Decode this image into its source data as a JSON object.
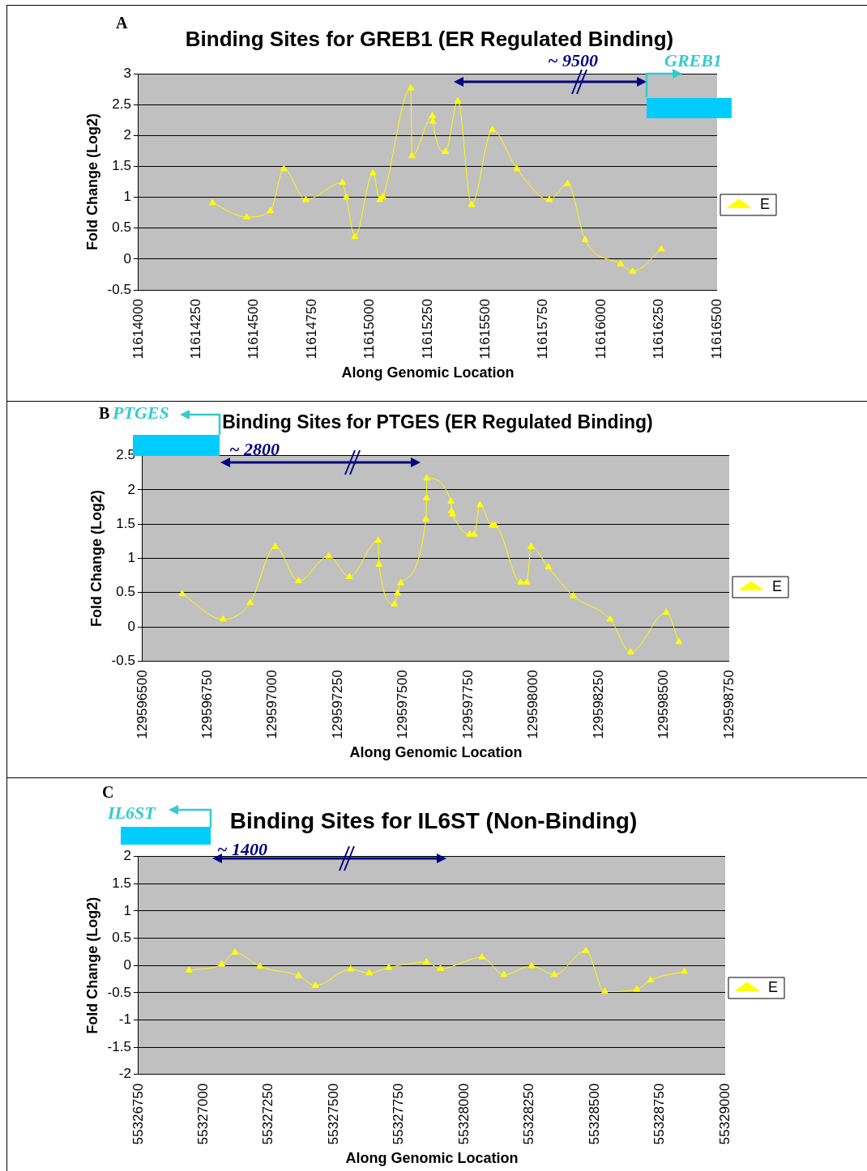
{
  "chart_data": [
    {
      "type": "line",
      "title": "Binding Sites for GREB1 (ER Regulated Binding)",
      "xlabel": "Along Genomic Location",
      "ylabel": "Fold Change (Log2)",
      "annotations": [
        "A",
        "~ 9500",
        "GREB1"
      ],
      "xlim": [
        11614000,
        11616500
      ],
      "xticks": [
        11614000,
        11614250,
        11614500,
        11614750,
        11615000,
        11615250,
        11615500,
        11615750,
        11616000,
        11616250,
        11616500
      ],
      "ylim": [
        -0.5,
        3
      ],
      "yticks": [
        -0.5,
        0,
        0.5,
        1,
        1.5,
        2,
        2.5,
        3
      ],
      "grid": "y",
      "legend": "right",
      "marker": "triangle",
      "line_style": "solid",
      "series": [
        {
          "name": "E",
          "color": "#ffff00",
          "x": [
            11614320,
            11614468,
            11614570,
            11614628,
            11614723,
            11614881,
            11614898,
            11614935,
            11615013,
            11615043,
            11615056,
            11615176,
            11615182,
            11615270,
            11615272,
            11615326,
            11615380,
            11615439,
            11615529,
            11615635,
            11615775,
            11615854,
            11615930,
            11616083,
            11616135,
            11616259
          ],
          "values": [
            0.91,
            0.68,
            0.78,
            1.46,
            0.96,
            1.24,
            1.0,
            0.36,
            1.39,
            0.96,
            1.01,
            2.77,
            1.67,
            2.32,
            2.23,
            1.74,
            2.56,
            0.88,
            2.09,
            1.46,
            0.96,
            1.22,
            0.31,
            -0.08,
            -0.2,
            0.16
          ]
        }
      ]
    },
    {
      "type": "line",
      "title": "Binding Sites for PTGES (ER Regulated Binding)",
      "xlabel": "Along Genomic Location",
      "ylabel": "Fold Change (Log2)",
      "annotations": [
        "B",
        "PTGES",
        "~ 2800"
      ],
      "xlim": [
        129596500,
        129598750
      ],
      "xticks": [
        129596500,
        129596750,
        129597000,
        129597250,
        129597500,
        129597750,
        129598000,
        129598250,
        129598500,
        129598750
      ],
      "ylim": [
        -0.5,
        2.5
      ],
      "yticks": [
        -0.5,
        0,
        0.5,
        1,
        1.5,
        2,
        2.5
      ],
      "grid": "y",
      "legend": "right",
      "marker": "triangle",
      "line_style": "solid",
      "series": [
        {
          "name": "E",
          "color": "#ffff00",
          "x": [
            129596652,
            129596809,
            129596913,
            129597009,
            129597098,
            129597214,
            129597293,
            129597404,
            129597407,
            129597466,
            129597478,
            129597490,
            129597587,
            129597589,
            129597590,
            129597683,
            129597685,
            129597689,
            129597754,
            129597772,
            129597794,
            129597840,
            129597851,
            129597950,
            129597974,
            129597990,
            129598056,
            129598152,
            129598294,
            129598372,
            129598509,
            129598557
          ],
          "values": [
            0.48,
            0.11,
            0.35,
            1.17,
            0.67,
            1.03,
            0.73,
            1.26,
            0.91,
            0.33,
            0.49,
            0.64,
            1.57,
            1.88,
            2.17,
            1.83,
            1.69,
            1.64,
            1.35,
            1.35,
            1.78,
            1.48,
            1.48,
            0.65,
            0.65,
            1.17,
            0.87,
            0.45,
            0.11,
            -0.37,
            0.21,
            -0.22
          ]
        }
      ]
    },
    {
      "type": "line",
      "title": "Binding Sites for IL6ST (Non-Binding)",
      "xlabel": "Along Genomic Location",
      "ylabel": "Fold Change (Log2)",
      "annotations": [
        "C",
        "IL6ST",
        "~ 1400"
      ],
      "xlim": [
        55326750,
        55329000
      ],
      "xticks": [
        55326750,
        55327000,
        55327250,
        55327500,
        55327750,
        55328000,
        55328250,
        55328500,
        55328750,
        55329000
      ],
      "ylim": [
        -2,
        2
      ],
      "yticks": [
        -2,
        -1.5,
        -1,
        -0.5,
        0,
        0.5,
        1,
        1.5,
        2
      ],
      "grid": "y",
      "legend": "right",
      "marker": "triangle",
      "line_style": "solid",
      "series": [
        {
          "name": "E",
          "color": "#ffff00",
          "x": [
            55326944,
            55327069,
            55327120,
            55327216,
            55327364,
            55327429,
            55327564,
            55327635,
            55327710,
            55327854,
            55327908,
            55328067,
            55328151,
            55328258,
            55328345,
            55328466,
            55328538,
            55328661,
            55328714,
            55328843
          ],
          "values": [
            -0.09,
            0.02,
            0.24,
            -0.02,
            -0.19,
            -0.37,
            -0.07,
            -0.14,
            -0.04,
            0.06,
            -0.06,
            0.15,
            -0.17,
            -0.01,
            -0.17,
            0.27,
            -0.48,
            -0.44,
            -0.27,
            -0.11
          ]
        }
      ]
    }
  ]
}
